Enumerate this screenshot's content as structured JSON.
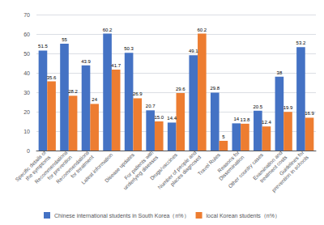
{
  "chart_data": {
    "type": "bar",
    "categories": [
      "Specific details of\nthe symptoms",
      "Recommendations\nfor prevention",
      "Recommendations\nfor treatment",
      "Latest information",
      "Disease updates",
      "For patients with\nunderlying diseases",
      "Drugs/vaccines",
      "Number of people and\nplaces diagnosed",
      "Travel Rules",
      "Reasons for\nDissemination",
      "Other country cases",
      "Examination and\ntreatment costs",
      "Guidelines for\nprevention in schools"
    ],
    "series": [
      {
        "name": "Chinese international students in South Korea（n%）",
        "color": "#4472c4",
        "values": [
          51.5,
          55,
          43.9,
          60.2,
          50.3,
          20.7,
          14.4,
          49.1,
          29.8,
          14,
          20.5,
          38,
          53.2
        ]
      },
      {
        "name": "local Korean students（n%）",
        "color": "#ed7d31",
        "values": [
          35.6,
          28.2,
          24,
          41.7,
          26.9,
          15.0,
          29.6,
          60.2,
          5,
          13.8,
          12.4,
          19.9,
          16.9
        ],
        "value_labels": [
          "35.6",
          "28.2",
          "24",
          "41.7",
          "26.9",
          "15.0",
          "29.6",
          "60.2",
          "5",
          "13.8",
          "12.4",
          "19.9",
          "16.9"
        ]
      }
    ],
    "ylim": [
      0,
      70
    ],
    "yticks": [
      0,
      10,
      20,
      30,
      40,
      50,
      60,
      70
    ],
    "grid": true,
    "data_labels": true,
    "legend": "bottom"
  }
}
